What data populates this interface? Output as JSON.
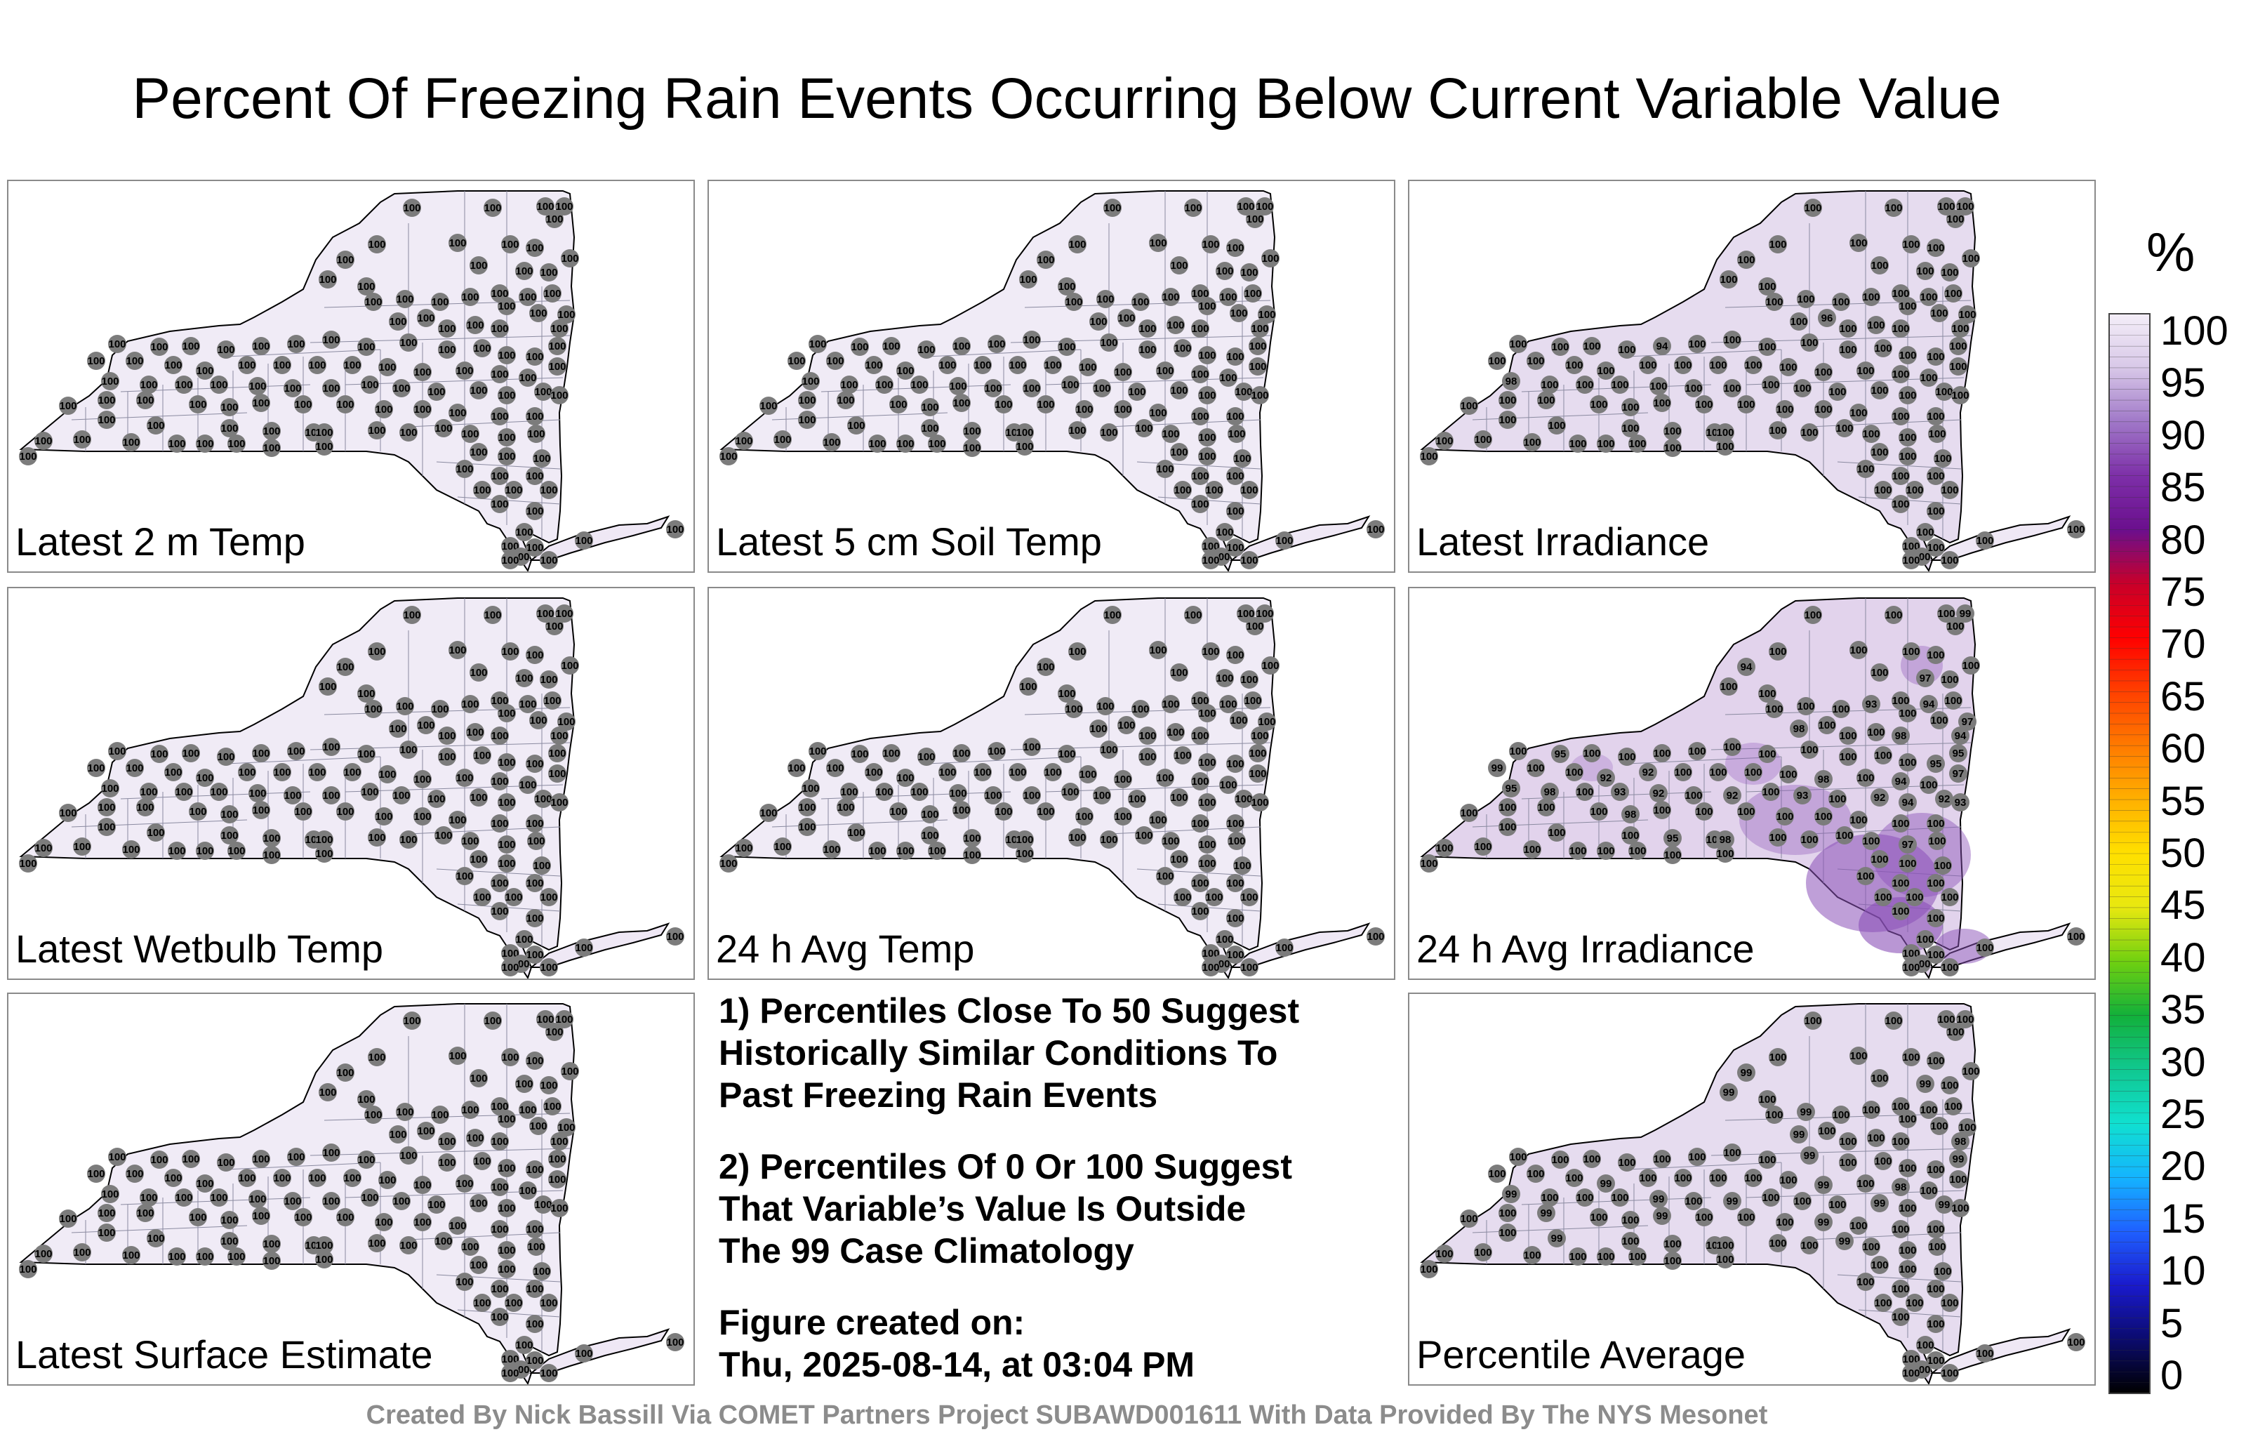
{
  "title": "Percent Of Freezing Rain Events Occurring Below Current Variable Value",
  "panels": [
    {
      "label": "Latest 2 m Temp",
      "overrides": {}
    },
    {
      "label": "Latest 5 cm Soil Temp",
      "overrides": {}
    },
    {
      "label": "Latest Irradiance",
      "overrides": {
        "36": "94",
        "60": "98",
        "27": "96"
      }
    },
    {
      "label": "Latest Wetbulb Temp",
      "overrides": {}
    },
    {
      "label": "24 h Avg Temp",
      "overrides": {}
    },
    {
      "label": "24 h Avg Irradiance",
      "overrides": {
        "3": "99",
        "6": "94",
        "14": "97",
        "17": "94",
        "22": "93",
        "25": "97",
        "26": "98",
        "30": "98",
        "31": "94",
        "33": "95",
        "44": "95",
        "45": "95",
        "46": "99",
        "49": "92",
        "50": "92",
        "55": "98",
        "57": "94",
        "59": "97",
        "60": "95",
        "61": "98",
        "63": "93",
        "64": "92",
        "66": "92",
        "68": "93",
        "70": "92",
        "71": "94",
        "72": "92",
        "73": "93",
        "78": "98",
        "90": "95",
        "92": "98",
        "97": "97"
      }
    },
    {
      "label": "Latest Surface Estimate",
      "overrides": {}
    },
    {
      "label": "Percentile Average",
      "overrides": {
        "6": "99",
        "11": "99",
        "14": "99",
        "20": "99",
        "26": "99",
        "31": "98",
        "40": "99",
        "45": "99",
        "49": "99",
        "55": "99",
        "57": "98",
        "60": "99",
        "64": "99",
        "66": "99",
        "70": "99",
        "72": "99",
        "76": "99",
        "79": "99",
        "83": "99",
        "88": "99",
        "95": "99"
      }
    }
  ],
  "default_value": "100",
  "notes": {
    "note1": [
      "1) Percentiles Close To 50 Suggest",
      "Historically Similar Conditions To",
      "Past Freezing Rain Events"
    ],
    "note2": [
      "2) Percentiles Of 0 Or 100 Suggest",
      "That Variable’s Value Is Outside",
      "The 99 Case Climatology"
    ],
    "created": [
      "Figure created on:",
      "Thu, 2025-08-14, at 03:04 PM"
    ]
  },
  "legend": {
    "unit": "%",
    "ticks": [
      "100",
      "95",
      "90",
      "85",
      "80",
      "75",
      "70",
      "65",
      "60",
      "55",
      "50",
      "45",
      "40",
      "35",
      "30",
      "25",
      "20",
      "15",
      "10",
      "5",
      "0"
    ],
    "range": [
      0,
      100
    ],
    "colors": [
      "#000000",
      "#0b0b6e",
      "#1a1acc",
      "#1f60ff",
      "#14b4ff",
      "#10e0d0",
      "#10c890",
      "#12b03a",
      "#70d010",
      "#e8e810",
      "#ffe000",
      "#ffb000",
      "#ff7a00",
      "#ff4000",
      "#ff0000",
      "#c8002a",
      "#6b0f8e",
      "#7d2fa8",
      "#a078c8",
      "#d8c8e8",
      "#f4eef8"
    ]
  },
  "footer": "Created By Nick Bassill Via COMET Partners Project SUBAWD001611 With Data Provided By The NYS Mesonet"
}
